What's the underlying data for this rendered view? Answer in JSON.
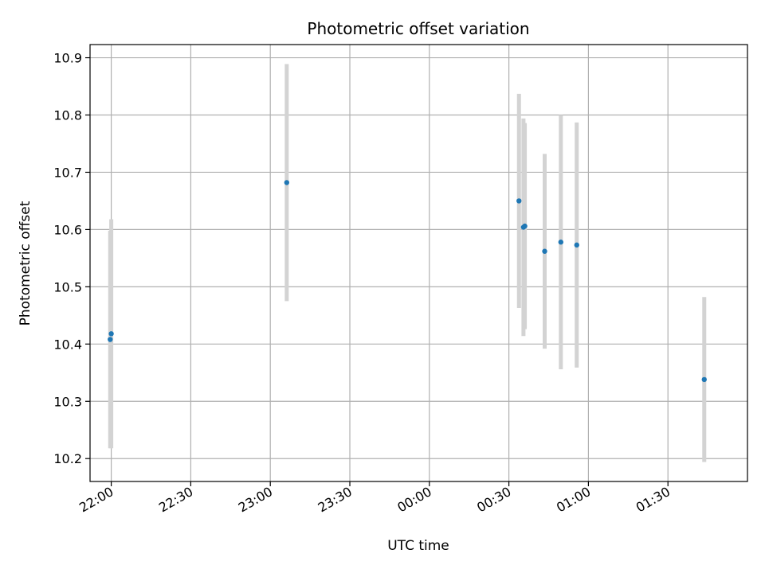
{
  "chart_data": {
    "type": "scatter",
    "title": "Photometric offset variation",
    "xlabel": "UTC time",
    "ylabel": "Photometric offset",
    "x_axis_type": "time",
    "xlim": [
      "21:52",
      "02:00"
    ],
    "ylim": [
      10.16,
      10.923
    ],
    "grid": true,
    "x_ticks": [
      "22:00",
      "22:30",
      "23:00",
      "23:30",
      "00:00",
      "00:30",
      "01:00",
      "01:30"
    ],
    "y_ticks": [
      "10.2",
      "10.3",
      "10.4",
      "10.5",
      "10.6",
      "10.7",
      "10.8",
      "10.9"
    ],
    "errorbar_color": "#d3d3d3",
    "marker_color": "#1f77b4",
    "points": [
      {
        "x": "21:59.6",
        "y": 10.408,
        "yerr": 0.19
      },
      {
        "x": "22:00.0",
        "y": 10.418,
        "yerr": 0.2
      },
      {
        "x": "23:06.2",
        "y": 10.682,
        "yerr": 0.207
      },
      {
        "x": "00:33.8",
        "y": 10.65,
        "yerr": 0.187
      },
      {
        "x": "00:35.5",
        "y": 10.604,
        "yerr": 0.19
      },
      {
        "x": "00:36.0",
        "y": 10.606,
        "yerr": 0.18
      },
      {
        "x": "00:43.5",
        "y": 10.562,
        "yerr": 0.17
      },
      {
        "x": "00:49.6",
        "y": 10.578,
        "yerr": 0.222
      },
      {
        "x": "00:55.6",
        "y": 10.573,
        "yerr": 0.214
      },
      {
        "x": "01:43.7",
        "y": 10.338,
        "yerr": 0.144
      }
    ]
  }
}
